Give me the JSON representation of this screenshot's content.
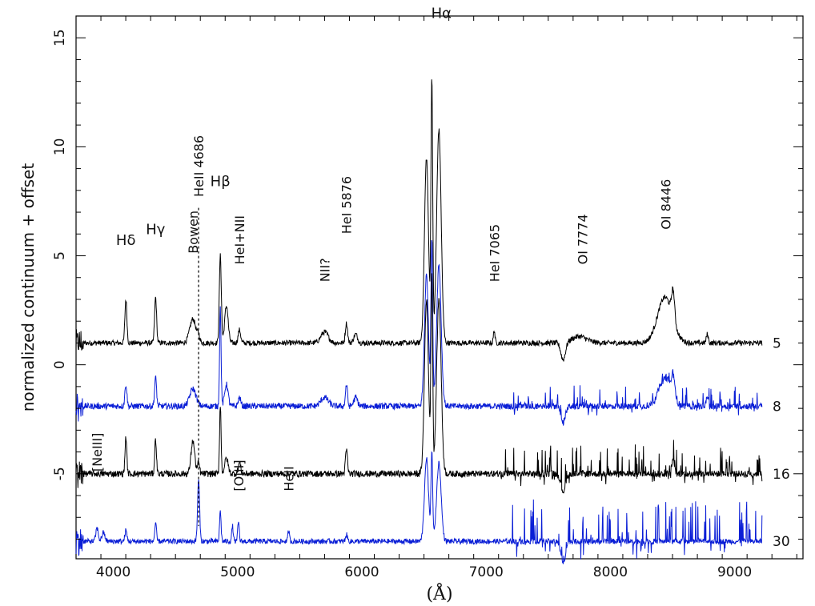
{
  "chart_data": {
    "type": "line",
    "xlabel": "(Å)",
    "ylabel": "normalized continuum + offset",
    "xlim": [
      3700,
      9550
    ],
    "ylim": [
      -8.9,
      16.0
    ],
    "xticks": [
      4000,
      5000,
      6000,
      7000,
      8000,
      9000
    ],
    "yticks": [
      -5,
      0,
      5,
      10,
      15
    ],
    "grid": false,
    "legend": "none",
    "series": [
      {
        "epoch": "5",
        "color": "#000000",
        "offset": 1.0,
        "wl_range": [
          3700,
          9220
        ],
        "noise": 0.12,
        "spikes_from": 0,
        "spike_amp": 0,
        "lines": [
          {
            "wl": 4101,
            "amp": 2.0,
            "sigma": 8
          },
          {
            "wl": 4340,
            "amp": 2.1,
            "sigma": 8
          },
          {
            "wl": 4640,
            "amp": 1.1,
            "sigma": 25
          },
          {
            "wl": 4686,
            "amp": 0.3,
            "sigma": 8
          },
          {
            "wl": 4861,
            "amp": 4.0,
            "sigma": 8
          },
          {
            "wl": 4910,
            "amp": 1.7,
            "sigma": 14
          },
          {
            "wl": 5015,
            "amp": 0.6,
            "sigma": 10
          },
          {
            "wl": 5700,
            "amp": 0.5,
            "sigma": 30
          },
          {
            "wl": 5876,
            "amp": 0.9,
            "sigma": 9
          },
          {
            "wl": 5950,
            "amp": 0.4,
            "sigma": 15
          },
          {
            "wl": 6520,
            "amp": 8.5,
            "sigma": 16
          },
          {
            "wl": 6563,
            "amp": 12.0,
            "sigma": 7
          },
          {
            "wl": 6620,
            "amp": 9.8,
            "sigma": 18
          },
          {
            "wl": 7065,
            "amp": 0.6,
            "sigma": 6
          },
          {
            "wl": 7620,
            "amp": -0.8,
            "sigma": 18
          },
          {
            "wl": 7750,
            "amp": 0.3,
            "sigma": 60
          },
          {
            "wl": 8440,
            "amp": 2.1,
            "sigma": 60
          },
          {
            "wl": 8505,
            "amp": 1.3,
            "sigma": 12
          },
          {
            "wl": 8780,
            "amp": 0.4,
            "sigma": 8
          }
        ]
      },
      {
        "epoch": "8",
        "color": "#0a1ed6",
        "offset": -1.9,
        "wl_range": [
          3700,
          9220
        ],
        "noise": 0.14,
        "spikes_from": 7200,
        "spike_amp": 0.6,
        "lines": [
          {
            "wl": 4101,
            "amp": 1.0,
            "sigma": 8
          },
          {
            "wl": 4340,
            "amp": 1.3,
            "sigma": 8
          },
          {
            "wl": 4640,
            "amp": 0.8,
            "sigma": 25
          },
          {
            "wl": 4861,
            "amp": 4.5,
            "sigma": 6
          },
          {
            "wl": 4910,
            "amp": 1.0,
            "sigma": 14
          },
          {
            "wl": 5015,
            "amp": 0.4,
            "sigma": 10
          },
          {
            "wl": 5700,
            "amp": 0.4,
            "sigma": 30
          },
          {
            "wl": 5876,
            "amp": 1.0,
            "sigma": 8
          },
          {
            "wl": 5950,
            "amp": 0.4,
            "sigma": 15
          },
          {
            "wl": 6520,
            "amp": 6.0,
            "sigma": 16
          },
          {
            "wl": 6563,
            "amp": 7.5,
            "sigma": 7
          },
          {
            "wl": 6620,
            "amp": 6.5,
            "sigma": 18
          },
          {
            "wl": 7620,
            "amp": -0.7,
            "sigma": 18
          },
          {
            "wl": 8440,
            "amp": 1.3,
            "sigma": 50
          },
          {
            "wl": 8505,
            "amp": 1.0,
            "sigma": 12
          },
          {
            "wl": 8780,
            "amp": 0.5,
            "sigma": 8
          }
        ]
      },
      {
        "epoch": "16",
        "color": "#000000",
        "offset": -5.0,
        "wl_range": [
          3700,
          9220
        ],
        "noise": 0.15,
        "spikes_from": 7100,
        "spike_amp": 0.9,
        "lines": [
          {
            "wl": 4101,
            "amp": 1.7,
            "sigma": 7
          },
          {
            "wl": 4340,
            "amp": 1.6,
            "sigma": 7
          },
          {
            "wl": 4640,
            "amp": 1.5,
            "sigma": 15
          },
          {
            "wl": 4686,
            "amp": 0.5,
            "sigma": 8
          },
          {
            "wl": 4861,
            "amp": 3.2,
            "sigma": 6
          },
          {
            "wl": 4910,
            "amp": 0.7,
            "sigma": 14
          },
          {
            "wl": 5015,
            "amp": 0.5,
            "sigma": 10
          },
          {
            "wl": 5876,
            "amp": 1.1,
            "sigma": 8
          },
          {
            "wl": 6520,
            "amp": 8.0,
            "sigma": 16
          },
          {
            "wl": 6563,
            "amp": 9.0,
            "sigma": 7
          },
          {
            "wl": 6620,
            "amp": 8.0,
            "sigma": 18
          },
          {
            "wl": 7620,
            "amp": -0.8,
            "sigma": 18
          },
          {
            "wl": 8505,
            "amp": 0.6,
            "sigma": 12
          }
        ]
      },
      {
        "epoch": "30",
        "color": "#0a1ed6",
        "offset": -8.1,
        "wl_range": [
          3700,
          9220
        ],
        "noise": 0.12,
        "spikes_from": 7200,
        "spike_amp": 1.3,
        "lines": [
          {
            "wl": 3869,
            "amp": 0.6,
            "sigma": 10
          },
          {
            "wl": 3920,
            "amp": 0.4,
            "sigma": 12
          },
          {
            "wl": 4101,
            "amp": 0.5,
            "sigma": 8
          },
          {
            "wl": 4340,
            "amp": 0.8,
            "sigma": 7
          },
          {
            "wl": 4686,
            "amp": 2.8,
            "sigma": 8
          },
          {
            "wl": 4861,
            "amp": 1.4,
            "sigma": 6
          },
          {
            "wl": 4959,
            "amp": 0.7,
            "sigma": 6
          },
          {
            "wl": 5007,
            "amp": 0.9,
            "sigma": 6
          },
          {
            "wl": 5411,
            "amp": 0.5,
            "sigma": 6
          },
          {
            "wl": 5876,
            "amp": 0.3,
            "sigma": 8
          },
          {
            "wl": 6520,
            "amp": 3.8,
            "sigma": 16
          },
          {
            "wl": 6563,
            "amp": 4.0,
            "sigma": 7
          },
          {
            "wl": 6620,
            "amp": 3.6,
            "sigma": 18
          },
          {
            "wl": 7620,
            "amp": -1.0,
            "sigma": 18
          }
        ]
      }
    ],
    "annotations": [
      {
        "text": "Hδ",
        "wl": 4101,
        "y": 5.5,
        "rotate": false,
        "big": true
      },
      {
        "text": "Hγ",
        "wl": 4340,
        "y": 6.0,
        "rotate": false,
        "big": true
      },
      {
        "text": "Bowen",
        "wl": 4640,
        "y": 5.1,
        "rotate": true
      },
      {
        "text": "HeII 4686",
        "wl": 4686,
        "y": 7.7,
        "rotate": true
      },
      {
        "text": "Hβ",
        "wl": 4861,
        "y": 8.2,
        "rotate": false,
        "big": true
      },
      {
        "text": "HeI+NII",
        "wl": 5015,
        "y": 4.6,
        "rotate": true
      },
      {
        "text": "NII?",
        "wl": 5700,
        "y": 3.8,
        "rotate": true
      },
      {
        "text": "HeI 5876",
        "wl": 5876,
        "y": 6.0,
        "rotate": true
      },
      {
        "text": "Hα",
        "wl": 6640,
        "y": 15.9,
        "rotate": false,
        "big": true
      },
      {
        "text": "HeI 7065",
        "wl": 7065,
        "y": 3.8,
        "rotate": true
      },
      {
        "text": "OI 7774",
        "wl": 7774,
        "y": 4.6,
        "rotate": true
      },
      {
        "text": "OI 8446",
        "wl": 8446,
        "y": 6.2,
        "rotate": true
      },
      {
        "text": "[NeIII]",
        "wl": 3869,
        "y": -4.9,
        "rotate": true
      },
      {
        "text": "[OIII]",
        "wl": 5007,
        "y": -5.8,
        "rotate": true
      },
      {
        "text": "HeII",
        "wl": 5411,
        "y": -5.8,
        "rotate": true
      }
    ],
    "marker_line": {
      "wl": 4686,
      "y_from": 7.2,
      "y_to": -7.4
    }
  }
}
